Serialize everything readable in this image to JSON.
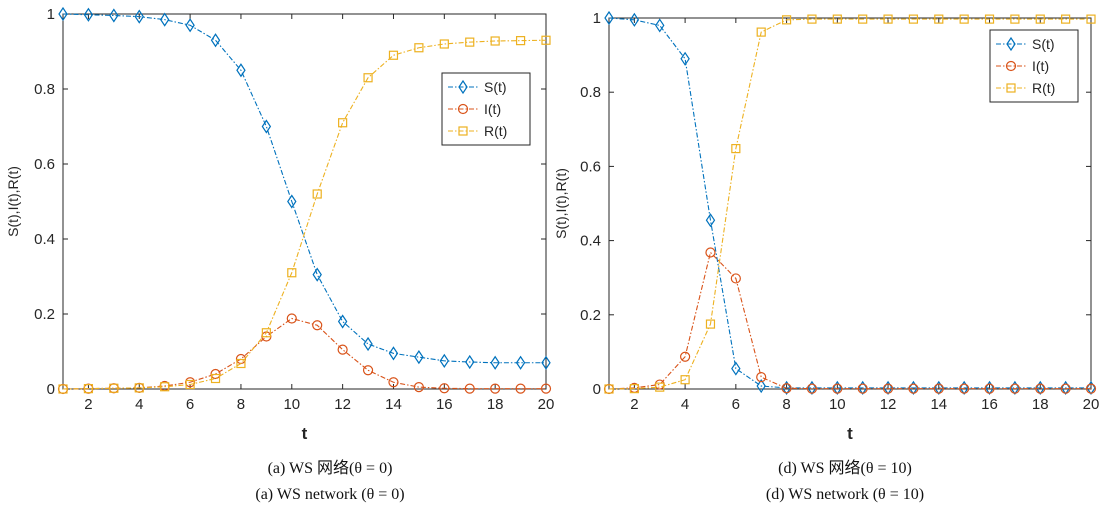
{
  "chart_data": [
    {
      "type": "line",
      "x": [
        1,
        2,
        3,
        4,
        5,
        6,
        7,
        8,
        9,
        10,
        11,
        12,
        13,
        14,
        15,
        16,
        17,
        18,
        19,
        20
      ],
      "series": [
        {
          "name": "S(t)",
          "color": "#0072BD",
          "marker": "diamond",
          "values": [
            1.0,
            0.998,
            0.996,
            0.993,
            0.985,
            0.97,
            0.93,
            0.85,
            0.7,
            0.5,
            0.305,
            0.18,
            0.12,
            0.095,
            0.085,
            0.075,
            0.072,
            0.07,
            0.07,
            0.07
          ]
        },
        {
          "name": "I(t)",
          "color": "#D95319",
          "marker": "circle",
          "values": [
            0,
            0.001,
            0.002,
            0.003,
            0.008,
            0.018,
            0.04,
            0.08,
            0.14,
            0.188,
            0.17,
            0.105,
            0.05,
            0.018,
            0.005,
            0.002,
            0.001,
            0.001,
            0.001,
            0.001
          ]
        },
        {
          "name": "R(t)",
          "color": "#EDB120",
          "marker": "square",
          "values": [
            0,
            0.001,
            0.002,
            0.003,
            0.006,
            0.012,
            0.028,
            0.068,
            0.15,
            0.31,
            0.52,
            0.71,
            0.83,
            0.89,
            0.91,
            0.92,
            0.925,
            0.928,
            0.929,
            0.93
          ]
        }
      ],
      "xlabel": "t",
      "ylabel": "S(t),I(t),R(t)",
      "xlim": [
        1,
        20
      ],
      "ylim": [
        0,
        1
      ],
      "xticks": [
        2,
        4,
        6,
        8,
        10,
        12,
        14,
        16,
        18,
        20
      ],
      "yticks": [
        0,
        0.2,
        0.4,
        0.6,
        0.8,
        1
      ],
      "ytick_labels": [
        "0",
        "0.2",
        "0.4",
        "0.6",
        "0.8",
        "1"
      ],
      "legend": "top-right"
    },
    {
      "type": "line",
      "x": [
        1,
        2,
        3,
        4,
        5,
        6,
        7,
        8,
        9,
        10,
        11,
        12,
        13,
        14,
        15,
        16,
        17,
        18,
        19,
        20
      ],
      "series": [
        {
          "name": "S(t)",
          "color": "#0072BD",
          "marker": "diamond",
          "values": [
            1.0,
            0.995,
            0.98,
            0.89,
            0.455,
            0.055,
            0.008,
            0.003,
            0.003,
            0.003,
            0.003,
            0.003,
            0.003,
            0.003,
            0.003,
            0.003,
            0.003,
            0.003,
            0.003,
            0.003
          ]
        },
        {
          "name": "I(t)",
          "color": "#D95319",
          "marker": "circle",
          "values": [
            0,
            0.003,
            0.012,
            0.087,
            0.368,
            0.298,
            0.032,
            0.002,
            0.001,
            0.001,
            0.001,
            0.001,
            0.001,
            0.001,
            0.001,
            0.001,
            0.001,
            0.001,
            0.001,
            0.001
          ]
        },
        {
          "name": "R(t)",
          "color": "#EDB120",
          "marker": "square",
          "values": [
            0,
            0.001,
            0.005,
            0.025,
            0.175,
            0.648,
            0.962,
            0.995,
            0.997,
            0.997,
            0.997,
            0.997,
            0.997,
            0.997,
            0.997,
            0.997,
            0.997,
            0.997,
            0.997,
            0.997
          ]
        }
      ],
      "xlabel": "t",
      "ylabel": "S(t),I(t),R(t)",
      "xlim": [
        1,
        20
      ],
      "ylim": [
        0,
        1
      ],
      "xticks": [
        2,
        4,
        6,
        8,
        10,
        12,
        14,
        16,
        18,
        20
      ],
      "yticks": [
        0,
        0.2,
        0.4,
        0.6,
        0.8,
        1
      ],
      "ytick_labels": [
        "0",
        "0.2",
        "0.4",
        "0.6",
        "0.8",
        "1"
      ],
      "legend": "top-right"
    }
  ],
  "captions": [
    {
      "zh": "(a) WS 网络(θ = 0)",
      "en": "(a) WS network (θ = 0)"
    },
    {
      "zh": "(d) WS 网络(θ = 10)",
      "en": "(d) WS network (θ = 10)"
    }
  ]
}
